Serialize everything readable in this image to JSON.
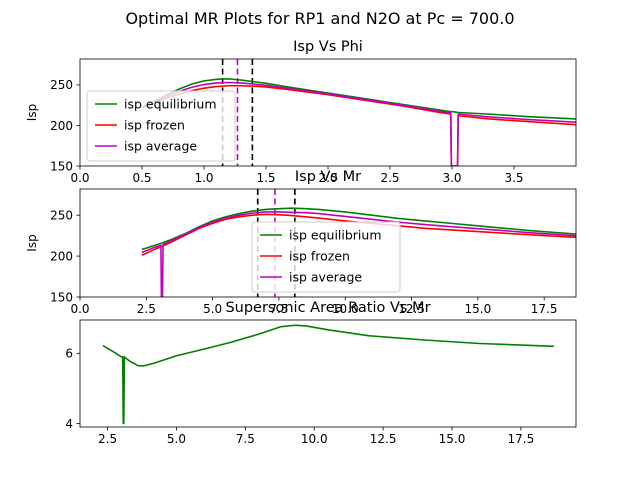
{
  "suptitle": "Optimal MR Plots for RP1 and N2O at Pc = 700.0",
  "colors": {
    "equilibrium": "#008000",
    "frozen": "#ff0000",
    "average": "#bf00bf",
    "vline_black": "#000000",
    "vline_magenta": "#bf00bf"
  },
  "chart_data": [
    {
      "type": "line",
      "title": "Isp Vs Phi",
      "xlabel": "",
      "ylabel": "Isp",
      "xlim": [
        0,
        4.0
      ],
      "ylim": [
        150,
        282
      ],
      "xticks": [
        0.0,
        0.5,
        1.0,
        1.5,
        2.0,
        2.5,
        3.0,
        3.5
      ],
      "yticks": [
        150,
        200,
        250
      ],
      "xtick_labels": [
        "0.0",
        "0.5",
        "1.0",
        "1.5",
        "2.0",
        "2.5",
        "3.0",
        "3.5"
      ],
      "ytick_labels": [
        "150",
        "200",
        "250"
      ],
      "vlines": [
        {
          "x": 1.15,
          "style": "dashed",
          "color": "black"
        },
        {
          "x": 1.39,
          "style": "dashed",
          "color": "black"
        },
        {
          "x": 1.27,
          "style": "dashed",
          "color": "magenta"
        }
      ],
      "legend": {
        "placement": "lower-left",
        "entries": [
          "isp equilibrium",
          "isp frozen",
          "isp average"
        ]
      },
      "series": [
        {
          "name": "isp equilibrium",
          "color_key": "equilibrium",
          "x": [
            0.5,
            0.6,
            0.7,
            0.8,
            0.9,
            1.0,
            1.1,
            1.2,
            1.3,
            1.4,
            1.5,
            1.7,
            2.0,
            2.3,
            2.6,
            2.9,
            2.99,
            3.0,
            3.01,
            3.05,
            3.3,
            3.6,
            4.0
          ],
          "y": [
            222,
            230,
            238,
            245,
            251,
            255,
            257,
            257.5,
            256,
            254,
            252,
            247,
            240,
            233,
            226,
            219,
            217,
            217,
            217,
            216,
            214,
            211,
            208
          ]
        },
        {
          "name": "isp frozen",
          "color_key": "frozen",
          "x": [
            0.5,
            0.6,
            0.7,
            0.8,
            0.9,
            1.0,
            1.1,
            1.2,
            1.3,
            1.4,
            1.5,
            1.7,
            2.0,
            2.3,
            2.6,
            2.9,
            2.99,
            2.995,
            3.0,
            3.045,
            3.05,
            3.3,
            3.6,
            4.0
          ],
          "y": [
            222,
            228,
            234,
            239,
            243,
            246,
            248,
            249,
            249,
            248.5,
            247.5,
            244,
            238,
            231,
            224,
            216,
            214,
            150,
            150,
            150,
            212,
            208,
            205,
            201
          ]
        },
        {
          "name": "isp average",
          "color_key": "average",
          "x": [
            0.5,
            0.6,
            0.7,
            0.8,
            0.9,
            1.0,
            1.1,
            1.2,
            1.3,
            1.4,
            1.5,
            1.7,
            2.0,
            2.3,
            2.6,
            2.9,
            2.99,
            2.995,
            3.0,
            3.045,
            3.05,
            3.3,
            3.6,
            4.0
          ],
          "y": [
            222,
            229,
            236,
            242,
            247,
            250.5,
            252.5,
            253,
            252.5,
            251,
            249.5,
            245.5,
            239,
            232,
            225,
            217.5,
            215.5,
            150,
            150,
            150,
            214,
            210.5,
            207.5,
            204
          ]
        }
      ]
    },
    {
      "type": "line",
      "title": "Isp Vs Mr",
      "xlabel": "",
      "ylabel": "Isp",
      "xlim": [
        0,
        18.7
      ],
      "ylim": [
        150,
        282
      ],
      "xticks": [
        0.0,
        2.5,
        5.0,
        7.5,
        10.0,
        12.5,
        15.0,
        17.5
      ],
      "yticks": [
        150,
        200,
        250
      ],
      "xtick_labels": [
        "0.0",
        "2.5",
        "5.0",
        "7.5",
        "10.0",
        "12.5",
        "15.0",
        "17.5"
      ],
      "ytick_labels": [
        "150",
        "200",
        "250"
      ],
      "vlines": [
        {
          "x": 6.7,
          "style": "dashed",
          "color": "black"
        },
        {
          "x": 8.1,
          "style": "dashed",
          "color": "black"
        },
        {
          "x": 7.35,
          "style": "dashed",
          "color": "magenta"
        }
      ],
      "legend": {
        "placement": "center",
        "entries": [
          "isp equilibrium",
          "isp frozen",
          "isp average"
        ]
      },
      "series": [
        {
          "name": "isp equilibrium",
          "color_key": "equilibrium",
          "x": [
            2.33,
            2.8,
            3.1,
            3.5,
            4.0,
            4.5,
            5.0,
            5.5,
            6.0,
            6.5,
            7.0,
            7.5,
            8.0,
            8.5,
            9.0,
            10.0,
            11.0,
            12.0,
            13.0,
            14.0,
            15.0,
            16.0,
            17.0,
            18.7
          ],
          "y": [
            208,
            213,
            216,
            221,
            228,
            236,
            243,
            248,
            252,
            255,
            257,
            258,
            258.5,
            258,
            257,
            254,
            250,
            246,
            243,
            240,
            237,
            234,
            231,
            227
          ]
        },
        {
          "name": "isp frozen",
          "color_key": "frozen",
          "x": [
            2.33,
            2.8,
            3.1,
            3.5,
            4.0,
            4.5,
            5.0,
            5.5,
            6.0,
            6.5,
            7.0,
            7.5,
            8.0,
            8.5,
            9.0,
            10.0,
            11.0,
            12.0,
            13.0,
            14.0,
            15.0,
            16.0,
            17.0,
            18.7
          ],
          "y": [
            201,
            208,
            212,
            218,
            226,
            234,
            240,
            245,
            248,
            250,
            251,
            250.5,
            249.5,
            248,
            246.5,
            243,
            240,
            237,
            234,
            232,
            230,
            228,
            226,
            223
          ]
        },
        {
          "name": "isp average",
          "color_key": "average",
          "x": [
            2.33,
            2.8,
            3.05,
            3.07,
            3.09,
            3.11,
            3.13,
            3.5,
            4.0,
            4.5,
            5.0,
            5.5,
            6.0,
            6.5,
            7.0,
            7.5,
            8.0,
            8.5,
            9.0,
            10.0,
            11.0,
            12.0,
            13.0,
            14.0,
            15.0,
            16.0,
            17.0,
            18.7
          ],
          "y": [
            204.5,
            210.5,
            213,
            150,
            150,
            150,
            214,
            219.5,
            227,
            235,
            241.5,
            246.5,
            250,
            252.5,
            254,
            254,
            253.5,
            253,
            252,
            248.5,
            245,
            241.5,
            238.5,
            236,
            233.5,
            231,
            228.5,
            225
          ]
        }
      ]
    },
    {
      "type": "line",
      "title": "Supersonic Area Ratio Vs Mr",
      "xlabel": "",
      "ylabel": "",
      "xlim": [
        1.5,
        19.5
      ],
      "ylim": [
        3.9,
        6.95
      ],
      "xticks": [
        2.5,
        5.0,
        7.5,
        10.0,
        12.5,
        15.0,
        17.5
      ],
      "yticks": [
        4,
        6
      ],
      "xtick_labels": [
        "2.5",
        "5.0",
        "7.5",
        "10.0",
        "12.5",
        "15.0",
        "17.5"
      ],
      "ytick_labels": [
        "4",
        "6"
      ],
      "series": [
        {
          "name": "",
          "color_key": "equilibrium",
          "x": [
            2.33,
            2.7,
            3.0,
            3.05,
            3.07,
            3.09,
            3.11,
            3.13,
            3.3,
            3.6,
            3.8,
            4.2,
            5.0,
            6.0,
            7.0,
            8.0,
            8.8,
            9.3,
            9.7,
            10.5,
            12.0,
            14.0,
            16.0,
            18.7
          ],
          "y": [
            6.22,
            6.05,
            5.9,
            5.9,
            4.0,
            4.0,
            5.9,
            5.88,
            5.78,
            5.65,
            5.64,
            5.72,
            5.93,
            6.12,
            6.32,
            6.55,
            6.76,
            6.8,
            6.78,
            6.67,
            6.5,
            6.38,
            6.28,
            6.2
          ]
        }
      ]
    }
  ]
}
